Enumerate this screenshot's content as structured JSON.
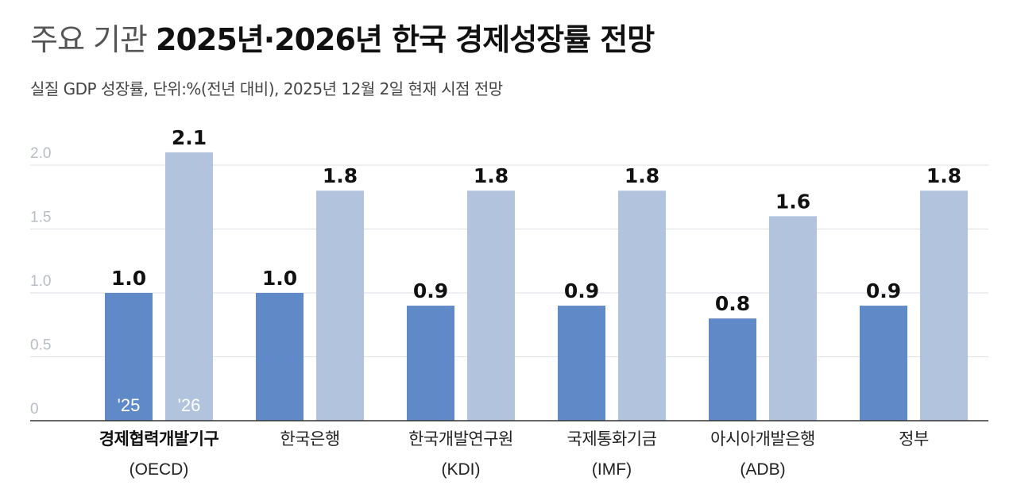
{
  "title": {
    "light": "주요 기관",
    "bold": "2025년·2026년 한국 경제성장률 전망"
  },
  "subtitle": "실질 GDP 성장률, 단위:%(전년 대비), 2025년 12월 2일 현재 시점 전망",
  "chart_data": {
    "type": "bar",
    "categories": [
      {
        "name": "경제협력개발기구",
        "abbr": "(OECD)",
        "bold": true
      },
      {
        "name": "한국은행",
        "abbr": "",
        "bold": false
      },
      {
        "name": "한국개발연구원",
        "abbr": "(KDI)",
        "bold": false
      },
      {
        "name": "국제통화기금",
        "abbr": "(IMF)",
        "bold": false
      },
      {
        "name": "아시아개발은행",
        "abbr": "(ADB)",
        "bold": false
      },
      {
        "name": "정부",
        "abbr": "",
        "bold": false
      }
    ],
    "series": [
      {
        "name": "'25",
        "color": "#5f89c7",
        "values": [
          1.0,
          1.0,
          0.9,
          0.9,
          0.8,
          0.9
        ],
        "labels": [
          "1.0",
          "1.0",
          "0.9",
          "0.9",
          "0.8",
          "0.9"
        ]
      },
      {
        "name": "'26",
        "color": "#b1c3dd",
        "values": [
          2.1,
          1.8,
          1.8,
          1.8,
          1.6,
          1.8
        ],
        "labels": [
          "2.1",
          "1.8",
          "1.8",
          "1.8",
          "1.6",
          "1.8"
        ]
      }
    ],
    "y_ticks": [
      "0",
      "0.5",
      "1.0",
      "1.5",
      "2.0"
    ],
    "ylim": [
      0,
      2.0
    ],
    "grid": true,
    "legend": "inside first category bars"
  }
}
